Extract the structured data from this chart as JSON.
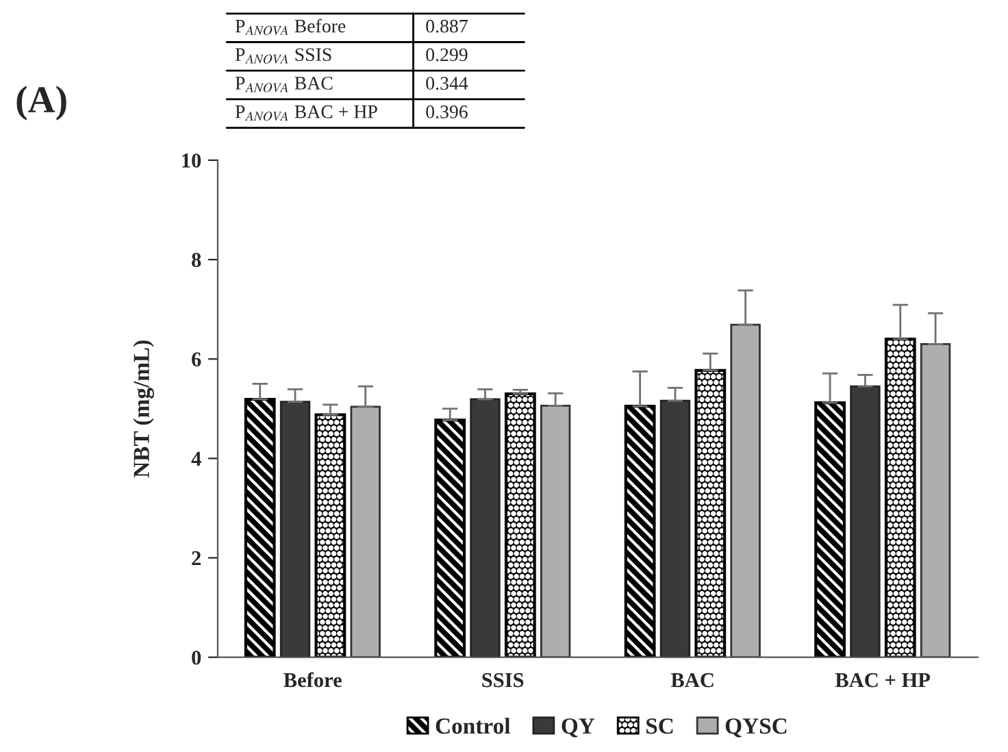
{
  "chart_data": {
    "type": "bar",
    "title": "(A)",
    "ylabel": "NBT (mg/mL)",
    "categories": [
      "Before",
      "SSIS",
      "BAC",
      "BAC + HP"
    ],
    "series": [
      {
        "name": "Control",
        "color": "#000000",
        "values": [
          5.19,
          4.77,
          5.05,
          5.12
        ],
        "errors": [
          0.31,
          0.23,
          0.7,
          0.59
        ]
      },
      {
        "name": "QY",
        "color": "#3a3a3a",
        "values": [
          5.14,
          5.19,
          5.16,
          5.45
        ],
        "errors": [
          0.25,
          0.2,
          0.26,
          0.23
        ]
      },
      {
        "name": "SC",
        "color": "#000000",
        "values": [
          4.88,
          5.3,
          5.77,
          6.4
        ],
        "errors": [
          0.2,
          0.08,
          0.34,
          0.69
        ]
      },
      {
        "name": "QYSC",
        "color": "#b0aeac",
        "values": [
          5.04,
          5.06,
          6.69,
          6.3
        ],
        "errors": [
          0.41,
          0.25,
          0.69,
          0.62
        ]
      }
    ],
    "ylim": [
      0,
      10
    ],
    "yticks": [
      0,
      2,
      4,
      6,
      8,
      10
    ],
    "grid": false,
    "legend": "bottom",
    "annotations": [
      "P$_{ANOVA}$ Before",
      "0.887",
      "P$_{ANOVA}$ SSIS",
      "0.299",
      "P$_{ANOVA}$ BAC",
      "0.344",
      "P$_{ANOVA}$ BAC + HP",
      "0.396"
    ]
  }
}
